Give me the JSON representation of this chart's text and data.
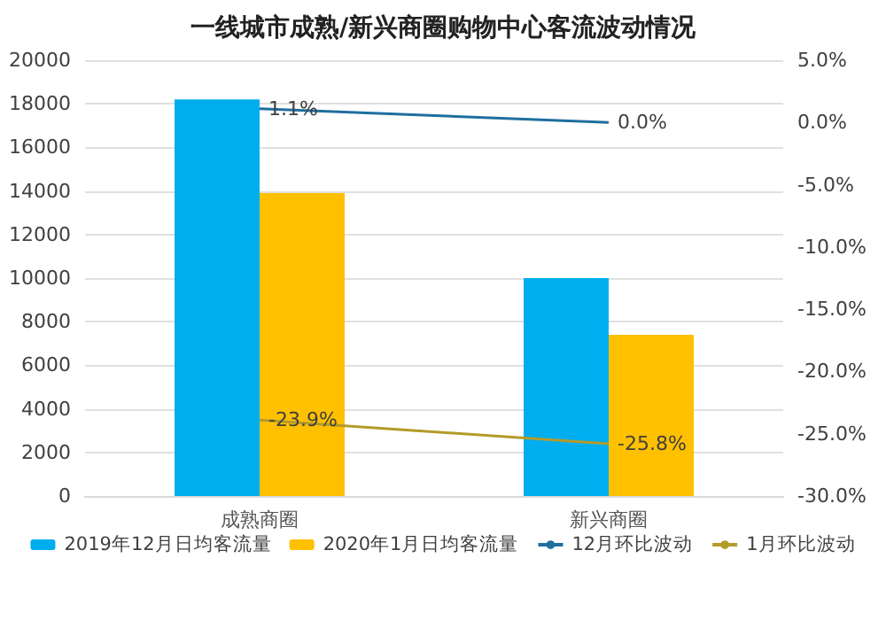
{
  "chart_data": {
    "type": "bar",
    "title": "一线城市成熟/新兴商圈购物中心客流波动情况",
    "categories": [
      "成熟商圈",
      "新兴商圈"
    ],
    "series": [
      {
        "name": "2019年12月日均客流量",
        "color": "#00aeef",
        "values": [
          18200,
          10000
        ]
      },
      {
        "name": "2020年1月日均客流量",
        "color": "#ffc000",
        "values": [
          13900,
          7400
        ]
      },
      {
        "name": "12月环比波动",
        "type": "line",
        "axis": "y2",
        "color": "#1f6f9f",
        "values": [
          1.1,
          0.0
        ],
        "value_labels": [
          "1.1%",
          "0.0%"
        ]
      },
      {
        "name": "1月环比波动",
        "type": "line",
        "axis": "y2",
        "color": "#b39b2a",
        "values": [
          -23.9,
          -25.8
        ],
        "value_labels": [
          "-23.9%",
          "-25.8%"
        ]
      }
    ],
    "ylim": [
      0,
      20000
    ],
    "yticks": [
      0,
      2000,
      4000,
      6000,
      8000,
      10000,
      12000,
      14000,
      16000,
      18000,
      20000
    ],
    "y2lim": [
      -30,
      5
    ],
    "y2ticks": [
      {
        "value": -30,
        "label": "-30.0%"
      },
      {
        "value": -25,
        "label": "-25.0%"
      },
      {
        "value": -20,
        "label": "-20.0%"
      },
      {
        "value": -15,
        "label": "-15.0%"
      },
      {
        "value": -10,
        "label": "-10.0%"
      },
      {
        "value": -5,
        "label": "-5.0%"
      },
      {
        "value": 0,
        "label": "0.0%"
      },
      {
        "value": 5,
        "label": "5.0%"
      }
    ],
    "grid": "y",
    "legend": "bottom",
    "marker": "none",
    "line_style": "solid"
  }
}
